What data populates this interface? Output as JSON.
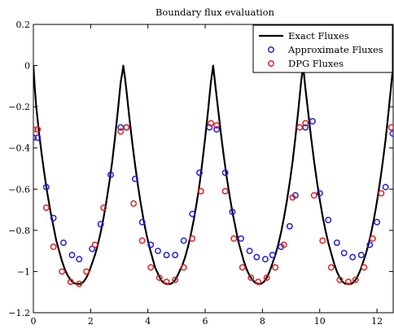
{
  "chart_data": {
    "type": "line",
    "title": "Boundary flux evaluation",
    "xlabel": "",
    "ylabel": "",
    "xlim": [
      0,
      12.566
    ],
    "ylim": [
      -1.2,
      0.2
    ],
    "xticks": [
      0,
      2,
      4,
      6,
      8,
      10,
      12
    ],
    "yticks": [
      -1.2,
      -1,
      -0.8,
      -0.6,
      -0.4,
      -0.2,
      0,
      0.2
    ],
    "xtick_labels": [
      "0",
      "2",
      "4",
      "6",
      "8",
      "10",
      "12"
    ],
    "ytick_labels": [
      "−1.2",
      "−1",
      "−0.8",
      "−0.6",
      "−0.4",
      "−0.2",
      "0",
      "0.2"
    ],
    "grid": false,
    "legend_position": "top-right",
    "series": [
      {
        "name": "Exact Fluxes",
        "style": "line",
        "color": "#000000",
        "x": [
          0,
          0.05,
          0.1,
          0.2,
          0.3,
          0.4,
          0.5,
          0.6,
          0.7,
          0.8,
          0.9,
          1.0,
          1.1,
          1.2,
          1.3,
          1.4,
          1.5,
          1.571,
          1.65,
          1.75,
          1.85,
          1.95,
          2.05,
          2.15,
          2.25,
          2.35,
          2.45,
          2.55,
          2.65,
          2.75,
          2.85,
          2.95,
          3.05,
          3.1,
          3.14,
          3.2,
          3.25,
          3.35,
          3.45,
          3.55,
          3.65,
          3.75,
          3.85,
          3.95,
          4.05,
          4.15,
          4.25,
          4.35,
          4.45,
          4.55,
          4.65,
          4.712,
          4.8,
          4.9,
          5.0,
          5.1,
          5.2,
          5.3,
          5.4,
          5.5,
          5.6,
          5.7,
          5.8,
          5.9,
          6.0,
          6.1,
          6.2,
          6.28,
          6.35,
          6.45,
          6.55,
          6.65,
          6.75,
          6.85,
          6.95,
          7.05,
          7.15,
          7.25,
          7.35,
          7.45,
          7.55,
          7.65,
          7.75,
          7.854,
          7.95,
          8.05,
          8.15,
          8.25,
          8.35,
          8.45,
          8.55,
          8.65,
          8.75,
          8.85,
          8.95,
          9.05,
          9.15,
          9.25,
          9.35,
          9.42,
          9.5,
          9.6,
          9.7,
          9.8,
          9.9,
          10.0,
          10.1,
          10.2,
          10.3,
          10.4,
          10.5,
          10.6,
          10.7,
          10.8,
          10.9,
          10.996,
          11.1,
          11.2,
          11.3,
          11.4,
          11.5,
          11.6,
          11.7,
          11.8,
          11.9,
          12.0,
          12.1,
          12.2,
          12.3,
          12.4,
          12.5,
          12.566
        ],
        "y": [
          0,
          -0.11,
          -0.2,
          -0.33,
          -0.44,
          -0.54,
          -0.63,
          -0.71,
          -0.78,
          -0.85,
          -0.9,
          -0.95,
          -0.99,
          -1.02,
          -1.04,
          -1.055,
          -1.06,
          -1.06,
          -1.06,
          -1.05,
          -1.03,
          -1.0,
          -0.96,
          -0.92,
          -0.87,
          -0.81,
          -0.74,
          -0.66,
          -0.57,
          -0.47,
          -0.35,
          -0.22,
          -0.08,
          -0.04,
          0,
          -0.06,
          -0.12,
          -0.25,
          -0.37,
          -0.48,
          -0.58,
          -0.67,
          -0.75,
          -0.82,
          -0.88,
          -0.93,
          -0.98,
          -1.01,
          -1.04,
          -1.055,
          -1.06,
          -1.06,
          -1.06,
          -1.05,
          -1.03,
          -1.0,
          -0.97,
          -0.93,
          -0.88,
          -0.82,
          -0.75,
          -0.67,
          -0.58,
          -0.47,
          -0.35,
          -0.22,
          -0.08,
          0,
          -0.09,
          -0.21,
          -0.33,
          -0.44,
          -0.54,
          -0.63,
          -0.71,
          -0.78,
          -0.85,
          -0.9,
          -0.95,
          -0.99,
          -1.02,
          -1.04,
          -1.055,
          -1.06,
          -1.06,
          -1.05,
          -1.03,
          -1.0,
          -0.96,
          -0.92,
          -0.87,
          -0.81,
          -0.74,
          -0.66,
          -0.57,
          -0.47,
          -0.35,
          -0.22,
          -0.08,
          0,
          -0.11,
          -0.23,
          -0.35,
          -0.46,
          -0.56,
          -0.65,
          -0.73,
          -0.8,
          -0.86,
          -0.91,
          -0.96,
          -1.0,
          -1.03,
          -1.05,
          -1.06,
          -1.06,
          -1.06,
          -1.05,
          -1.03,
          -1.0,
          -0.96,
          -0.92,
          -0.87,
          -0.81,
          -0.74,
          -0.66,
          -0.57,
          -0.47,
          -0.36,
          -0.23,
          -0.09,
          0
        ]
      },
      {
        "name": "Approximate Fluxes",
        "style": "marker",
        "color": "#1f1fe0",
        "x": [
          0.0,
          0.15,
          0.45,
          0.7,
          1.05,
          1.35,
          1.6,
          2.05,
          2.35,
          2.7,
          3.05,
          3.25,
          3.55,
          3.8,
          4.1,
          4.35,
          4.65,
          4.95,
          5.25,
          5.55,
          5.8,
          6.15,
          6.4,
          6.7,
          6.95,
          7.25,
          7.55,
          7.8,
          8.1,
          8.35,
          8.65,
          8.95,
          9.15,
          9.5,
          9.75,
          10.0,
          10.3,
          10.6,
          10.85,
          11.15,
          11.45,
          11.75,
          12.0,
          12.3,
          12.55
        ],
        "y": [
          -0.35,
          -0.35,
          -0.59,
          -0.74,
          -0.86,
          -0.92,
          -0.94,
          -0.89,
          -0.77,
          -0.53,
          -0.3,
          -0.3,
          -0.55,
          -0.76,
          -0.87,
          -0.9,
          -0.92,
          -0.92,
          -0.85,
          -0.72,
          -0.52,
          -0.3,
          -0.31,
          -0.52,
          -0.71,
          -0.84,
          -0.9,
          -0.93,
          -0.94,
          -0.92,
          -0.88,
          -0.78,
          -0.63,
          -0.3,
          -0.27,
          -0.62,
          -0.75,
          -0.86,
          -0.91,
          -0.93,
          -0.92,
          -0.87,
          -0.76,
          -0.59,
          -0.33
        ]
      },
      {
        "name": "DPG Fluxes",
        "style": "marker",
        "color": "#e02020",
        "x": [
          0.0,
          0.15,
          0.45,
          0.7,
          1.0,
          1.3,
          1.6,
          1.85,
          2.15,
          2.45,
          3.05,
          3.25,
          3.5,
          3.8,
          4.1,
          4.4,
          4.65,
          4.95,
          5.25,
          5.55,
          5.85,
          6.2,
          6.4,
          6.7,
          7.0,
          7.3,
          7.6,
          7.85,
          8.15,
          8.45,
          8.75,
          9.05,
          9.3,
          9.5,
          9.8,
          10.1,
          10.4,
          10.7,
          11.0,
          11.25,
          11.55,
          11.85,
          12.15,
          12.5
        ],
        "y": [
          -0.31,
          -0.31,
          -0.69,
          -0.88,
          -1.0,
          -1.05,
          -1.06,
          -1.0,
          -0.87,
          -0.69,
          -0.32,
          -0.3,
          -0.67,
          -0.85,
          -0.98,
          -1.03,
          -1.05,
          -1.04,
          -0.98,
          -0.84,
          -0.61,
          -0.28,
          -0.29,
          -0.61,
          -0.84,
          -0.98,
          -1.03,
          -1.05,
          -1.03,
          -0.98,
          -0.87,
          -0.64,
          -0.3,
          -0.28,
          -0.63,
          -0.85,
          -0.98,
          -1.04,
          -1.05,
          -1.04,
          -0.98,
          -0.84,
          -0.62,
          -0.3
        ]
      }
    ]
  }
}
